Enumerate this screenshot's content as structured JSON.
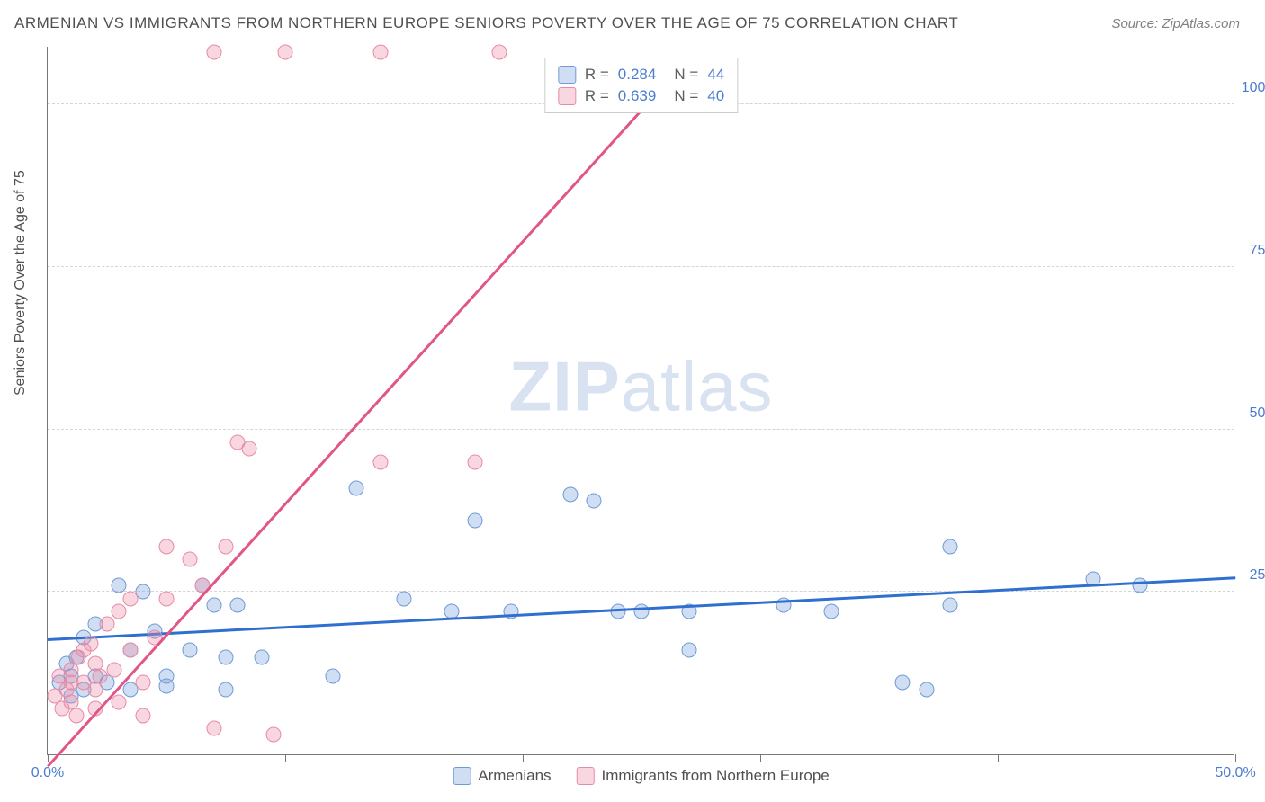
{
  "title": "ARMENIAN VS IMMIGRANTS FROM NORTHERN EUROPE SENIORS POVERTY OVER THE AGE OF 75 CORRELATION CHART",
  "source": "Source: ZipAtlas.com",
  "ylabel": "Seniors Poverty Over the Age of 75",
  "watermark_a": "ZIP",
  "watermark_b": "atlas",
  "chart": {
    "type": "scatter",
    "xlim": [
      0,
      50
    ],
    "ylim": [
      0,
      109
    ],
    "xticks": [
      0,
      10,
      20,
      30,
      40,
      50
    ],
    "xtick_labels": [
      "0.0%",
      "",
      "",
      "",
      "",
      "50.0%"
    ],
    "yticks": [
      25,
      50,
      75,
      100
    ],
    "ytick_labels": [
      "25.0%",
      "50.0%",
      "75.0%",
      "100.0%"
    ],
    "background_color": "#ffffff",
    "grid_color": "#d5d5d5",
    "series": [
      {
        "name": "Armenians",
        "fill": "rgba(120,160,220,0.35)",
        "stroke": "#6f9ad6",
        "trend_color": "#2e6fd0",
        "R": "0.284",
        "N": "44",
        "trend": {
          "x1": 0,
          "y1": 17.5,
          "x2": 50,
          "y2": 27
        },
        "points": [
          [
            0.5,
            11
          ],
          [
            0.8,
            14
          ],
          [
            1,
            9
          ],
          [
            1,
            12
          ],
          [
            1.2,
            15
          ],
          [
            1.5,
            18
          ],
          [
            1.5,
            10
          ],
          [
            2,
            20
          ],
          [
            2,
            12
          ],
          [
            2.5,
            11
          ],
          [
            3,
            26
          ],
          [
            3.5,
            16
          ],
          [
            3.5,
            10
          ],
          [
            4,
            25
          ],
          [
            4.5,
            19
          ],
          [
            5,
            12
          ],
          [
            5,
            10.5
          ],
          [
            6,
            16
          ],
          [
            6.5,
            26
          ],
          [
            7,
            23
          ],
          [
            7.5,
            15
          ],
          [
            7.5,
            10
          ],
          [
            8,
            23
          ],
          [
            9,
            15
          ],
          [
            12,
            12
          ],
          [
            13,
            41
          ],
          [
            15,
            24
          ],
          [
            17,
            22
          ],
          [
            18,
            36
          ],
          [
            19.5,
            22
          ],
          [
            22,
            40
          ],
          [
            23,
            39
          ],
          [
            25,
            22
          ],
          [
            27,
            22
          ],
          [
            27,
            16
          ],
          [
            31,
            23
          ],
          [
            33,
            22
          ],
          [
            36,
            11
          ],
          [
            37,
            10
          ],
          [
            38,
            32
          ],
          [
            38,
            23
          ],
          [
            44,
            27
          ],
          [
            46,
            26
          ],
          [
            24,
            22
          ]
        ]
      },
      {
        "name": "Immigrants from Northern Europe",
        "fill": "rgba(235,140,165,0.35)",
        "stroke": "#e88aa5",
        "trend_color": "#e15588",
        "R": "0.639",
        "N": "40",
        "trend": {
          "x1": 0,
          "y1": -2,
          "x2": 26,
          "y2": 103
        },
        "points": [
          [
            0.3,
            9
          ],
          [
            0.5,
            12
          ],
          [
            0.6,
            7
          ],
          [
            0.8,
            10
          ],
          [
            1,
            13
          ],
          [
            1,
            8
          ],
          [
            1,
            11
          ],
          [
            1.2,
            6
          ],
          [
            1.3,
            15
          ],
          [
            1.5,
            11
          ],
          [
            1.5,
            16
          ],
          [
            1.8,
            17
          ],
          [
            2,
            10
          ],
          [
            2,
            14
          ],
          [
            2,
            7
          ],
          [
            2.2,
            12
          ],
          [
            2.5,
            20
          ],
          [
            2.8,
            13
          ],
          [
            3,
            22
          ],
          [
            3,
            8
          ],
          [
            3.5,
            16
          ],
          [
            3.5,
            24
          ],
          [
            4,
            11
          ],
          [
            4,
            6
          ],
          [
            4.5,
            18
          ],
          [
            5,
            32
          ],
          [
            5,
            24
          ],
          [
            6,
            30
          ],
          [
            6.5,
            26
          ],
          [
            7,
            4
          ],
          [
            7.5,
            32
          ],
          [
            8,
            48
          ],
          [
            8.5,
            47
          ],
          [
            9.5,
            3
          ],
          [
            14,
            45
          ],
          [
            18,
            45
          ],
          [
            7,
            108
          ],
          [
            10,
            108
          ],
          [
            14,
            108
          ],
          [
            19,
            108
          ]
        ]
      }
    ]
  },
  "legend_bottom": [
    {
      "label": "Armenians",
      "fill": "rgba(120,160,220,0.35)",
      "stroke": "#6f9ad6"
    },
    {
      "label": "Immigrants from Northern Europe",
      "fill": "rgba(235,140,165,0.35)",
      "stroke": "#e88aa5"
    }
  ]
}
